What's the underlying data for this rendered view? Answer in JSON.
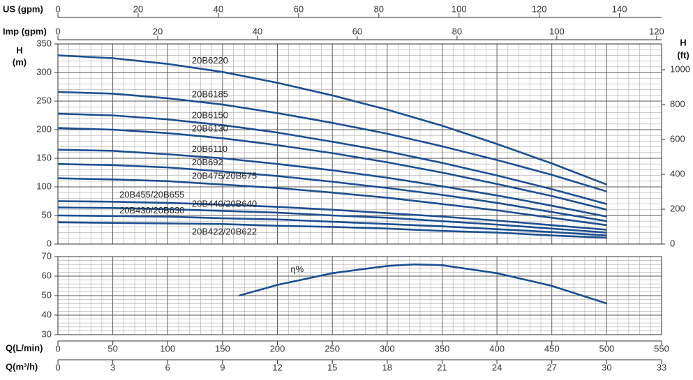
{
  "chart_data": [
    {
      "type": "line",
      "ylabel": "H",
      "yunit": "(m)",
      "y2label": "H",
      "y2unit": "(ft)",
      "x": [
        0,
        50,
        100,
        150,
        200,
        250,
        300,
        350,
        400,
        450,
        500
      ],
      "xlim": [
        0,
        550
      ],
      "ylim": [
        0,
        350
      ],
      "yticks": [
        0,
        50,
        100,
        150,
        200,
        250,
        300,
        350
      ],
      "y2lim": [
        0,
        1148.29
      ],
      "y2ticks": [
        0,
        200,
        400,
        600,
        800,
        1000
      ],
      "grid": true,
      "color": "#1d4f91",
      "top_axes": [
        {
          "label": "US (gpm)",
          "lim": [
            0,
            150.5
          ],
          "ticks": [
            0,
            20,
            40,
            60,
            80,
            100,
            120,
            140
          ]
        },
        {
          "label": "Imp (gpm)",
          "lim": [
            0,
            121
          ],
          "ticks": [
            0,
            20,
            40,
            60,
            80,
            100,
            120
          ]
        }
      ],
      "series": [
        {
          "name": "20B6220",
          "values": [
            330,
            325,
            315,
            301,
            282,
            260,
            235,
            207,
            175,
            141,
            104
          ]
        },
        {
          "name": "20B6185",
          "values": [
            266,
            263,
            255,
            244,
            229,
            212,
            193,
            171,
            147,
            121,
            92
          ]
        },
        {
          "name": "20B6150",
          "values": [
            228,
            225,
            218,
            208,
            195,
            179,
            162,
            142,
            120,
            96,
            70
          ]
        },
        {
          "name": "20B6130",
          "values": [
            203,
            200,
            194,
            185,
            173,
            159,
            143,
            125,
            105,
            84,
            60
          ]
        },
        {
          "name": "20B6110",
          "values": [
            165,
            163,
            157,
            150,
            140,
            129,
            116,
            101,
            85,
            67,
            48
          ]
        },
        {
          "name": "20B692",
          "values": [
            140,
            138,
            134,
            127,
            119,
            109,
            98,
            86,
            72,
            56,
            40
          ]
        },
        {
          "name": "20B475/20B675",
          "values": [
            115,
            113,
            110,
            104,
            98,
            90,
            81,
            70,
            59,
            46,
            33
          ]
        },
        {
          "name": "20B455/20B655",
          "values": [
            75,
            74,
            72,
            69,
            65,
            60,
            54,
            48,
            41,
            33,
            25
          ]
        },
        {
          "name": "20B440/20B640",
          "values": [
            64,
            63,
            61,
            58,
            55,
            50,
            46,
            40,
            34,
            27,
            20
          ]
        },
        {
          "name": "20B430/20B630",
          "values": [
            50,
            49,
            48,
            45,
            43,
            39,
            35,
            31,
            26,
            21,
            15
          ]
        },
        {
          "name": "20B422/20B622",
          "values": [
            38,
            37,
            36,
            35,
            32,
            30,
            27,
            23,
            20,
            15,
            11
          ]
        }
      ]
    },
    {
      "type": "line",
      "xlabel": "Q(L/min)",
      "x": [
        165,
        200,
        250,
        300,
        325,
        350,
        400,
        450,
        500
      ],
      "xlim": [
        0,
        550
      ],
      "xticks": [
        0,
        50,
        100,
        150,
        200,
        250,
        300,
        350,
        400,
        450,
        500,
        550
      ],
      "ylim": [
        30,
        70
      ],
      "yticks": [
        30,
        40,
        50,
        60,
        70
      ],
      "grid": true,
      "color": "#1d4f91",
      "bottom_axis": {
        "label": "Q(m³/h)",
        "lim": [
          0,
          33
        ],
        "ticks": [
          0,
          3,
          6,
          9,
          12,
          15,
          18,
          21,
          24,
          27,
          30,
          33
        ]
      },
      "series": [
        {
          "name": "η%",
          "values": [
            50,
            55.5,
            61.5,
            65.2,
            66,
            65.6,
            61.5,
            55,
            46
          ]
        }
      ]
    }
  ]
}
